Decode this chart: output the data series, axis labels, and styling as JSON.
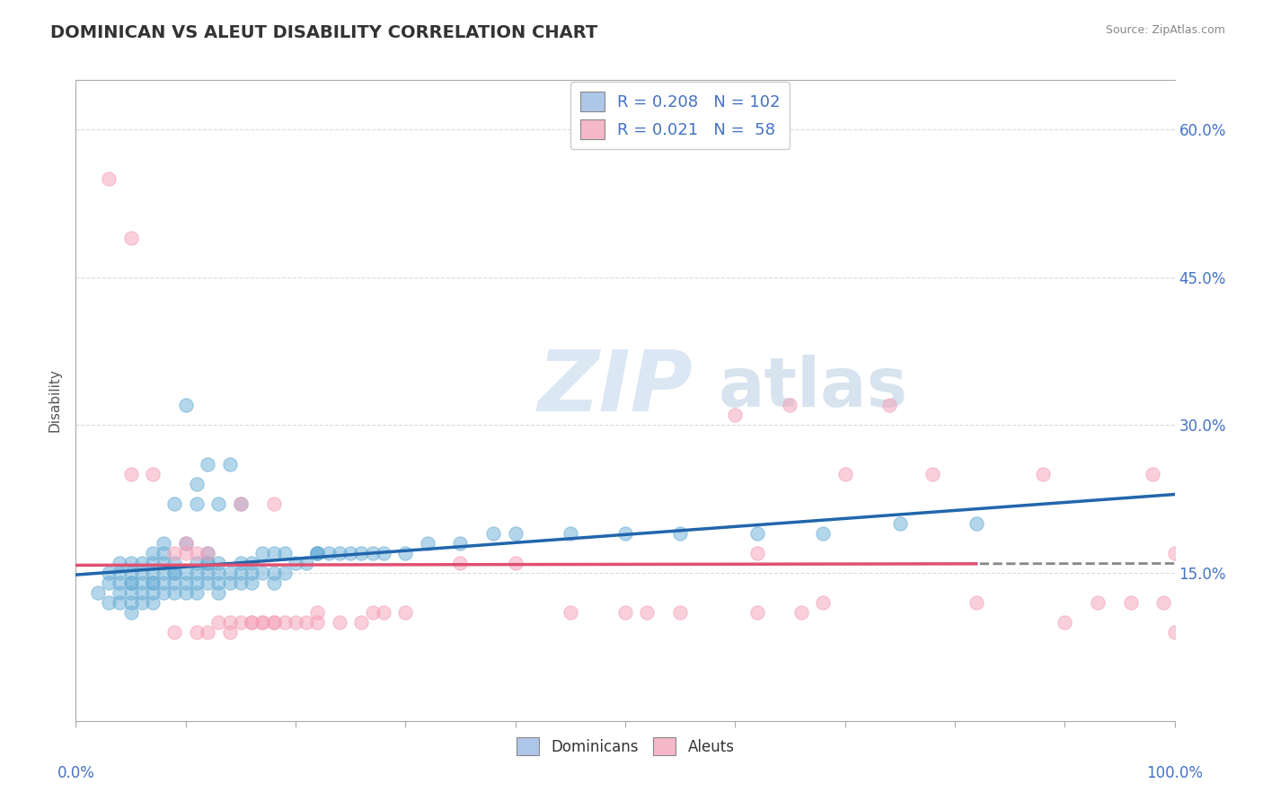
{
  "title": "DOMINICAN VS ALEUT DISABILITY CORRELATION CHART",
  "source": "Source: ZipAtlas.com",
  "ylabel": "Disability",
  "xlim": [
    0,
    100
  ],
  "ylim": [
    0,
    65
  ],
  "ytick_vals": [
    15,
    30,
    45,
    60
  ],
  "ytick_labels": [
    "15.0%",
    "30.0%",
    "45.0%",
    "60.0%"
  ],
  "legend_r_labels": [
    "R = 0.208   N = 102",
    "R = 0.021   N =  58"
  ],
  "legend_bot_labels": [
    "Dominicans",
    "Aleuts"
  ],
  "dominican_color": "#6aaed6",
  "aleut_color": "#f4a0b8",
  "dominican_line_color": "#2166ac",
  "aleut_line_color": "#e05070",
  "watermark_zip": "ZIP",
  "watermark_atlas": "atlas",
  "background_color": "#ffffff",
  "grid_color": "#cccccc",
  "dom_x": [
    2,
    3,
    3,
    3,
    4,
    4,
    4,
    4,
    4,
    5,
    5,
    5,
    5,
    5,
    5,
    5,
    6,
    6,
    6,
    6,
    6,
    7,
    7,
    7,
    7,
    7,
    7,
    7,
    8,
    8,
    8,
    8,
    8,
    8,
    9,
    9,
    9,
    9,
    9,
    9,
    10,
    10,
    10,
    10,
    10,
    11,
    11,
    11,
    11,
    11,
    11,
    12,
    12,
    12,
    12,
    12,
    12,
    13,
    13,
    13,
    13,
    13,
    14,
    14,
    14,
    15,
    15,
    15,
    15,
    16,
    16,
    16,
    17,
    17,
    18,
    18,
    18,
    19,
    19,
    20,
    21,
    22,
    22,
    22,
    23,
    24,
    25,
    26,
    27,
    28,
    30,
    32,
    35,
    38,
    40,
    45,
    50,
    55,
    62,
    68,
    75,
    82
  ],
  "dom_y": [
    13,
    12,
    14,
    15,
    12,
    13,
    14,
    15,
    16,
    11,
    12,
    13,
    14,
    15,
    14,
    16,
    12,
    13,
    14,
    15,
    16,
    12,
    13,
    14,
    15,
    16,
    17,
    14,
    13,
    14,
    15,
    16,
    17,
    18,
    13,
    14,
    15,
    16,
    15,
    22,
    13,
    14,
    15,
    18,
    32,
    13,
    14,
    15,
    16,
    22,
    24,
    14,
    15,
    16,
    17,
    16,
    26,
    13,
    14,
    15,
    16,
    22,
    14,
    15,
    26,
    14,
    15,
    16,
    22,
    14,
    15,
    16,
    15,
    17,
    14,
    15,
    17,
    15,
    17,
    16,
    16,
    17,
    17,
    17,
    17,
    17,
    17,
    17,
    17,
    17,
    17,
    18,
    18,
    19,
    19,
    19,
    19,
    19,
    19,
    19,
    20,
    20
  ],
  "aleut_x": [
    3,
    5,
    5,
    7,
    9,
    9,
    10,
    10,
    11,
    11,
    12,
    12,
    13,
    14,
    14,
    15,
    15,
    16,
    16,
    17,
    17,
    18,
    18,
    18,
    19,
    20,
    21,
    22,
    22,
    24,
    26,
    27,
    28,
    30,
    35,
    40,
    45,
    50,
    52,
    55,
    60,
    62,
    65,
    66,
    68,
    70,
    74,
    78,
    82,
    88,
    90,
    93,
    96,
    98,
    99,
    100,
    100,
    62
  ],
  "aleut_y": [
    55,
    49,
    25,
    25,
    17,
    9,
    17,
    18,
    9,
    17,
    9,
    17,
    10,
    9,
    10,
    10,
    22,
    10,
    10,
    10,
    10,
    10,
    10,
    22,
    10,
    10,
    10,
    10,
    11,
    10,
    10,
    11,
    11,
    11,
    16,
    16,
    11,
    11,
    11,
    11,
    31,
    11,
    32,
    11,
    12,
    25,
    32,
    25,
    12,
    25,
    10,
    12,
    12,
    25,
    12,
    9,
    17,
    17
  ]
}
